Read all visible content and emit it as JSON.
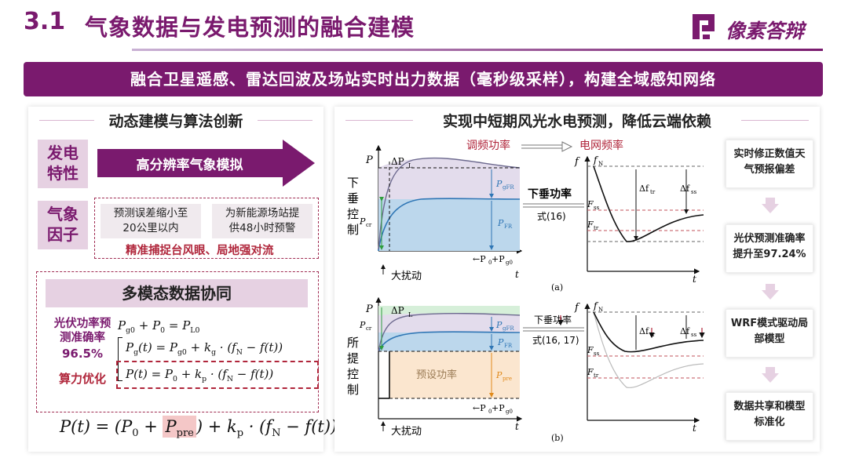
{
  "header": {
    "number": "3.1",
    "title": "气象数据与发电预测的融合建模",
    "logo_text": "像素答辩"
  },
  "banner": "融合卫星遥感、雷达回波及场站实时出力数据（毫秒级采样），构建全域感知网络",
  "left": {
    "title": "动态建模与算法创新",
    "side1": [
      "发电",
      "特性"
    ],
    "arrow_label": "高分辨率气象模拟",
    "side2": [
      "气象",
      "因子"
    ],
    "pill1": [
      "预测误差缩小至",
      "20公里以内"
    ],
    "pill2": [
      "为新能源场站提",
      "供48小时预警"
    ],
    "red_line": "精准捕捉台风眼、局地强对流",
    "multi_title": "多模态数据协同",
    "accuracy_label": [
      "光伏功率预",
      "测准确率"
    ],
    "accuracy_value": "96.5%",
    "opt_label": "算力优化"
  },
  "right": {
    "title": "实现中短期风光水电预测，降低云端依赖",
    "chart_labels": {
      "top_left_title": "调频功率",
      "top_right_title": "电网频率",
      "row_a_label": [
        "下",
        "垂",
        "控",
        "制"
      ],
      "row_b_label": [
        "所",
        "提",
        "控",
        "制"
      ],
      "droop_power": "下垂功率",
      "eq16": "式(16)",
      "droop_power_b": "下垂功率",
      "eq16_17": "式(16, 17)",
      "preset_power": "预设功率",
      "disturbance": "大扰动",
      "caption_a": "(a)",
      "caption_b": "(b)"
    },
    "boxes": [
      [
        "实时修正数值天",
        "气预报偏差"
      ],
      [
        "光伏预测准确率",
        "提升至97.24%"
      ],
      [
        "WRF模式驱动局",
        "部模型"
      ],
      [
        "数据共享和模型",
        "标准化"
      ]
    ]
  },
  "colors": {
    "brand": "#7a1a6e",
    "accent_red": "#b0263b",
    "chart_blue": "#2f76b5",
    "chart_fill_blue": "#bcd7ec",
    "chart_fill_purple": "#e3dcec",
    "chart_fill_green": "#d6efd9",
    "chart_fill_orange": "#fbe6cf"
  }
}
